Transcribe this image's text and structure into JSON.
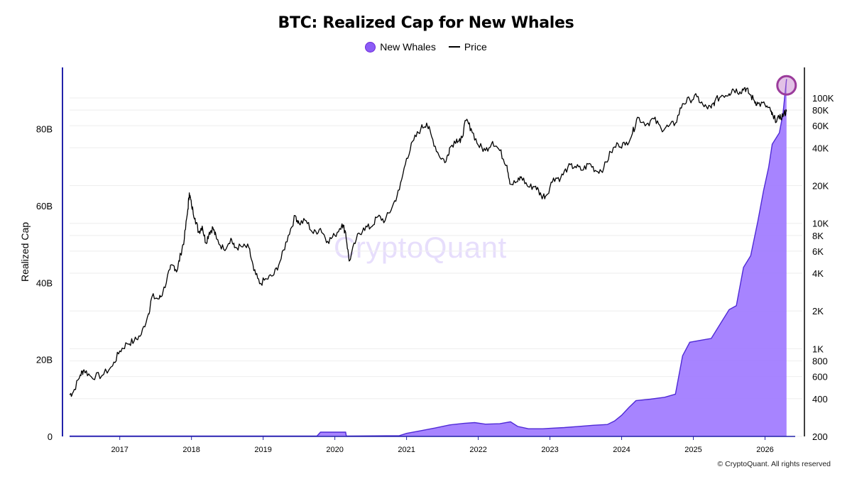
{
  "chart_data": {
    "type": "area",
    "title": "BTC: Realized Cap for New Whales",
    "ylabel": "Realized Cap",
    "y_left_ticks": [
      {
        "value": 0,
        "label": "0"
      },
      {
        "value": 20,
        "label": "20B"
      },
      {
        "value": 40,
        "label": "40B"
      },
      {
        "value": 60,
        "label": "60B"
      },
      {
        "value": 80,
        "label": "80B"
      }
    ],
    "y_left_unit": "billions USD",
    "ylim_left": [
      0,
      96
    ],
    "y_right_ticks": [
      {
        "value": 200,
        "label": "200"
      },
      {
        "value": 400,
        "label": "400"
      },
      {
        "value": 600,
        "label": "600"
      },
      {
        "value": 800,
        "label": "800"
      },
      {
        "value": 1000,
        "label": "1K"
      },
      {
        "value": 2000,
        "label": "2K"
      },
      {
        "value": 4000,
        "label": "4K"
      },
      {
        "value": 6000,
        "label": "6K"
      },
      {
        "value": 8000,
        "label": "8K"
      },
      {
        "value": 10000,
        "label": "10K"
      },
      {
        "value": 20000,
        "label": "20K"
      },
      {
        "value": 40000,
        "label": "40K"
      },
      {
        "value": 60000,
        "label": "60K"
      },
      {
        "value": 80000,
        "label": "80K"
      },
      {
        "value": 100000,
        "label": "100K"
      }
    ],
    "y_right_scale": "log",
    "ylim_right": [
      200,
      175000
    ],
    "x_ticks": [
      "2017",
      "2018",
      "2019",
      "2020",
      "2021",
      "2022",
      "2023",
      "2024",
      "2025",
      "2026"
    ],
    "xlim": [
      2016.3,
      2026.5
    ],
    "legend": [
      {
        "name": "New Whales",
        "marker": "circle",
        "color": "#8b5cf6"
      },
      {
        "name": "Price",
        "marker": "line",
        "color": "#000000"
      }
    ],
    "legend_position": "top-center",
    "series": [
      {
        "name": "New Whales",
        "axis": "left",
        "color": "#8b5cf6",
        "points": [
          [
            2016.3,
            0.1
          ],
          [
            2019.75,
            0.1
          ],
          [
            2019.8,
            1.1
          ],
          [
            2020.15,
            1.1
          ],
          [
            2020.16,
            0.1
          ],
          [
            2020.9,
            0.2
          ],
          [
            2021.0,
            0.8
          ],
          [
            2021.2,
            1.5
          ],
          [
            2021.4,
            2.2
          ],
          [
            2021.6,
            3.0
          ],
          [
            2021.8,
            3.4
          ],
          [
            2021.95,
            3.6
          ],
          [
            2022.1,
            3.2
          ],
          [
            2022.3,
            3.3
          ],
          [
            2022.45,
            3.8
          ],
          [
            2022.55,
            2.6
          ],
          [
            2022.7,
            2.0
          ],
          [
            2022.9,
            2.0
          ],
          [
            2023.0,
            2.1
          ],
          [
            2023.2,
            2.3
          ],
          [
            2023.4,
            2.6
          ],
          [
            2023.6,
            2.9
          ],
          [
            2023.8,
            3.1
          ],
          [
            2023.9,
            4.0
          ],
          [
            2024.0,
            5.5
          ],
          [
            2024.1,
            7.5
          ],
          [
            2024.2,
            9.3
          ],
          [
            2024.4,
            9.7
          ],
          [
            2024.6,
            10.2
          ],
          [
            2024.75,
            11.0
          ],
          [
            2024.85,
            21.0
          ],
          [
            2024.95,
            24.5
          ],
          [
            2025.1,
            25.0
          ],
          [
            2025.25,
            25.5
          ],
          [
            2025.4,
            30.0
          ],
          [
            2025.5,
            33.0
          ],
          [
            2025.6,
            34.0
          ],
          [
            2025.7,
            44.0
          ],
          [
            2025.8,
            47.0
          ],
          [
            2025.9,
            56.0
          ],
          [
            2025.98,
            64.0
          ],
          [
            2026.05,
            70.0
          ],
          [
            2026.1,
            76.0
          ],
          [
            2026.2,
            79.0
          ],
          [
            2026.25,
            84.0
          ],
          [
            2026.3,
            93.0
          ]
        ]
      },
      {
        "name": "Price",
        "axis": "right",
        "color": "#000000",
        "points": [
          [
            2016.3,
            430
          ],
          [
            2016.35,
            450
          ],
          [
            2016.45,
            620
          ],
          [
            2016.5,
            680
          ],
          [
            2016.6,
            600
          ],
          [
            2016.75,
            610
          ],
          [
            2016.9,
            730
          ],
          [
            2017.0,
            960
          ],
          [
            2017.1,
            1100
          ],
          [
            2017.2,
            1150
          ],
          [
            2017.3,
            1300
          ],
          [
            2017.4,
            1900
          ],
          [
            2017.45,
            2600
          ],
          [
            2017.55,
            2500
          ],
          [
            2017.6,
            2800
          ],
          [
            2017.7,
            4300
          ],
          [
            2017.75,
            4600
          ],
          [
            2017.8,
            4200
          ],
          [
            2017.85,
            5700
          ],
          [
            2017.9,
            7500
          ],
          [
            2017.95,
            13000
          ],
          [
            2017.97,
            17500
          ],
          [
            2018.0,
            14000
          ],
          [
            2018.05,
            11000
          ],
          [
            2018.1,
            8500
          ],
          [
            2018.15,
            9500
          ],
          [
            2018.2,
            7000
          ],
          [
            2018.25,
            8500
          ],
          [
            2018.3,
            9200
          ],
          [
            2018.35,
            7500
          ],
          [
            2018.45,
            6200
          ],
          [
            2018.55,
            7600
          ],
          [
            2018.6,
            6400
          ],
          [
            2018.7,
            6500
          ],
          [
            2018.8,
            6400
          ],
          [
            2018.87,
            4200
          ],
          [
            2018.95,
            3300
          ],
          [
            2019.05,
            3600
          ],
          [
            2019.15,
            3900
          ],
          [
            2019.25,
            5200
          ],
          [
            2019.35,
            8000
          ],
          [
            2019.45,
            11500
          ],
          [
            2019.5,
            10000
          ],
          [
            2019.6,
            10500
          ],
          [
            2019.7,
            8300
          ],
          [
            2019.8,
            9100
          ],
          [
            2019.9,
            7200
          ],
          [
            2020.0,
            8000
          ],
          [
            2020.1,
            9900
          ],
          [
            2020.15,
            8500
          ],
          [
            2020.2,
            5000
          ],
          [
            2020.3,
            7500
          ],
          [
            2020.4,
            9200
          ],
          [
            2020.5,
            9300
          ],
          [
            2020.6,
            11300
          ],
          [
            2020.7,
            10500
          ],
          [
            2020.8,
            13500
          ],
          [
            2020.9,
            18500
          ],
          [
            2021.0,
            33000
          ],
          [
            2021.1,
            46000
          ],
          [
            2021.2,
            57000
          ],
          [
            2021.28,
            63000
          ],
          [
            2021.35,
            49000
          ],
          [
            2021.45,
            35000
          ],
          [
            2021.55,
            31000
          ],
          [
            2021.6,
            40000
          ],
          [
            2021.7,
            47000
          ],
          [
            2021.75,
            44000
          ],
          [
            2021.83,
            66000
          ],
          [
            2021.9,
            57000
          ],
          [
            2022.0,
            42000
          ],
          [
            2022.1,
            38000
          ],
          [
            2022.2,
            45000
          ],
          [
            2022.3,
            38000
          ],
          [
            2022.4,
            29000
          ],
          [
            2022.45,
            20500
          ],
          [
            2022.55,
            21500
          ],
          [
            2022.6,
            23500
          ],
          [
            2022.7,
            19500
          ],
          [
            2022.8,
            19800
          ],
          [
            2022.88,
            16500
          ],
          [
            2022.95,
            16700
          ],
          [
            2023.05,
            23000
          ],
          [
            2023.15,
            23000
          ],
          [
            2023.25,
            28000
          ],
          [
            2023.35,
            28500
          ],
          [
            2023.45,
            26500
          ],
          [
            2023.55,
            30000
          ],
          [
            2023.65,
            26000
          ],
          [
            2023.75,
            27500
          ],
          [
            2023.85,
            37000
          ],
          [
            2023.95,
            43000
          ],
          [
            2024.05,
            42000
          ],
          [
            2024.15,
            52000
          ],
          [
            2024.22,
            70000
          ],
          [
            2024.35,
            62000
          ],
          [
            2024.45,
            68000
          ],
          [
            2024.55,
            57000
          ],
          [
            2024.65,
            59000
          ],
          [
            2024.75,
            63000
          ],
          [
            2024.85,
            90000
          ],
          [
            2024.95,
            97000
          ],
          [
            2025.05,
            102000
          ],
          [
            2025.15,
            85000
          ],
          [
            2025.25,
            83000
          ],
          [
            2025.3,
            94000
          ],
          [
            2025.4,
            105000
          ],
          [
            2025.5,
            108000
          ],
          [
            2025.55,
            118000
          ],
          [
            2025.65,
            112000
          ],
          [
            2025.72,
            121000
          ],
          [
            2025.78,
            108000
          ],
          [
            2025.85,
            95000
          ],
          [
            2025.9,
            90000
          ],
          [
            2026.0,
            88000
          ],
          [
            2026.08,
            78000
          ],
          [
            2026.12,
            68000
          ],
          [
            2026.2,
            68000
          ],
          [
            2026.26,
            74000
          ],
          [
            2026.3,
            78000
          ]
        ]
      }
    ],
    "annotation": {
      "type": "highlight-circle",
      "x": 2026.3,
      "axis": "right",
      "y": 126000,
      "color": "#9b3b9b"
    },
    "watermark": "CryptoQuant",
    "copyright": "© CryptoQuant. All rights reserved"
  }
}
